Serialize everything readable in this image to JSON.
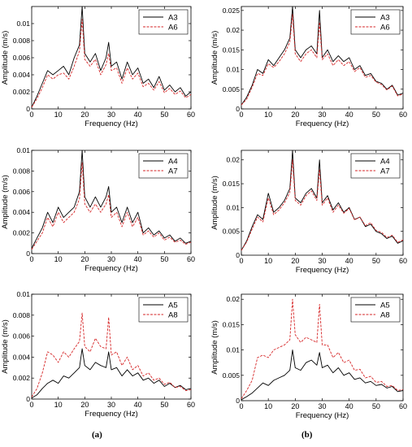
{
  "figure": {
    "labels": [
      "(a)",
      "(b)"
    ]
  },
  "chart_data": [
    {
      "id": "a1",
      "type": "line",
      "xlabel": "Frequency (Hz)",
      "ylabel": "Amplitude (m/s)",
      "xlim": [
        0,
        60
      ],
      "ylim": [
        0,
        0.012
      ],
      "xticks": [
        0,
        10,
        20,
        30,
        40,
        50,
        60
      ],
      "yticks": [
        "0",
        "0.002",
        "0.004",
        "0.006",
        "0.008",
        "0.01"
      ],
      "ytick_values": [
        0,
        0.002,
        0.004,
        0.006,
        0.008,
        0.01
      ],
      "legend_position": "top-right",
      "series": [
        {
          "name": "A3",
          "color": "#000000",
          "dash": "solid",
          "x": [
            0,
            2,
            4,
            6,
            8,
            10,
            12,
            14,
            16,
            18,
            19,
            20,
            22,
            24,
            26,
            28,
            29,
            30,
            32,
            34,
            36,
            38,
            40,
            42,
            44,
            46,
            48,
            50,
            52,
            54,
            56,
            58,
            60
          ],
          "y": [
            0.0002,
            0.0015,
            0.003,
            0.0045,
            0.004,
            0.0045,
            0.005,
            0.004,
            0.006,
            0.0075,
            0.012,
            0.0065,
            0.0055,
            0.0065,
            0.0045,
            0.006,
            0.0078,
            0.005,
            0.0055,
            0.0035,
            0.0055,
            0.004,
            0.0048,
            0.003,
            0.0035,
            0.0025,
            0.0038,
            0.0022,
            0.0028,
            0.002,
            0.0025,
            0.0015,
            0.002
          ]
        },
        {
          "name": "A6",
          "color": "#d62728",
          "dash": "dashed",
          "x": [
            0,
            2,
            4,
            6,
            8,
            10,
            12,
            14,
            16,
            18,
            19,
            20,
            22,
            24,
            26,
            28,
            29,
            30,
            32,
            34,
            36,
            38,
            40,
            42,
            44,
            46,
            48,
            50,
            52,
            54,
            56,
            58,
            60
          ],
          "y": [
            0.0002,
            0.0012,
            0.0025,
            0.004,
            0.0035,
            0.004,
            0.0042,
            0.0035,
            0.005,
            0.0068,
            0.0105,
            0.0058,
            0.005,
            0.0058,
            0.004,
            0.0052,
            0.0065,
            0.0045,
            0.0048,
            0.003,
            0.0048,
            0.0035,
            0.0042,
            0.0026,
            0.003,
            0.0022,
            0.0032,
            0.0019,
            0.0024,
            0.0017,
            0.0021,
            0.0013,
            0.0017
          ]
        }
      ]
    },
    {
      "id": "b1",
      "type": "line",
      "xlabel": "Frequency (Hz)",
      "ylabel": "Amplitude (m/s)",
      "xlim": [
        0,
        60
      ],
      "ylim": [
        0,
        0.026
      ],
      "xticks": [
        0,
        10,
        20,
        30,
        40,
        50,
        60
      ],
      "yticks": [
        "0",
        "0.005",
        "0.01",
        "0.015",
        "0.02",
        "0.025"
      ],
      "ytick_values": [
        0,
        0.005,
        0.01,
        0.015,
        0.02,
        0.025
      ],
      "legend_position": "top-right",
      "series": [
        {
          "name": "A3",
          "color": "#000000",
          "dash": "solid",
          "x": [
            0,
            2,
            4,
            6,
            8,
            10,
            12,
            14,
            16,
            18,
            19,
            20,
            22,
            24,
            26,
            28,
            29,
            30,
            32,
            34,
            36,
            38,
            40,
            42,
            44,
            46,
            48,
            50,
            52,
            54,
            56,
            58,
            60
          ],
          "y": [
            0.001,
            0.003,
            0.006,
            0.01,
            0.009,
            0.0125,
            0.011,
            0.013,
            0.015,
            0.018,
            0.026,
            0.015,
            0.013,
            0.015,
            0.016,
            0.014,
            0.025,
            0.013,
            0.015,
            0.012,
            0.0135,
            0.012,
            0.013,
            0.01,
            0.011,
            0.0085,
            0.009,
            0.007,
            0.0065,
            0.005,
            0.006,
            0.0035,
            0.004
          ]
        },
        {
          "name": "A6",
          "color": "#d62728",
          "dash": "dashed",
          "x": [
            0,
            2,
            4,
            6,
            8,
            10,
            12,
            14,
            16,
            18,
            19,
            20,
            22,
            24,
            26,
            28,
            29,
            30,
            32,
            34,
            36,
            38,
            40,
            42,
            44,
            46,
            48,
            50,
            52,
            54,
            56,
            58,
            60
          ],
          "y": [
            0.001,
            0.0025,
            0.0055,
            0.009,
            0.0085,
            0.0115,
            0.0105,
            0.012,
            0.014,
            0.017,
            0.024,
            0.014,
            0.012,
            0.014,
            0.015,
            0.013,
            0.022,
            0.0125,
            0.014,
            0.011,
            0.0125,
            0.011,
            0.012,
            0.0095,
            0.0105,
            0.008,
            0.0085,
            0.0068,
            0.0062,
            0.0048,
            0.0058,
            0.0033,
            0.0038
          ]
        }
      ]
    },
    {
      "id": "a2",
      "type": "line",
      "xlabel": "Frequency (Hz)",
      "ylabel": "Amplitude (m/s)",
      "xlim": [
        0,
        60
      ],
      "ylim": [
        0,
        0.01
      ],
      "xticks": [
        0,
        10,
        20,
        30,
        40,
        50,
        60
      ],
      "yticks": [
        "0",
        "0.002",
        "0.004",
        "0.006",
        "0.008",
        "0.01"
      ],
      "ytick_values": [
        0,
        0.002,
        0.004,
        0.006,
        0.008,
        0.01
      ],
      "legend_position": "top-right",
      "series": [
        {
          "name": "A4",
          "color": "#000000",
          "dash": "solid",
          "x": [
            0,
            2,
            4,
            6,
            8,
            10,
            12,
            14,
            16,
            18,
            19,
            20,
            22,
            24,
            26,
            28,
            29,
            30,
            32,
            34,
            36,
            38,
            40,
            42,
            44,
            46,
            48,
            50,
            52,
            54,
            56,
            58,
            60
          ],
          "y": [
            0.0005,
            0.0015,
            0.0025,
            0.004,
            0.003,
            0.0045,
            0.0035,
            0.004,
            0.0045,
            0.006,
            0.01,
            0.0055,
            0.0045,
            0.0055,
            0.0045,
            0.0055,
            0.0065,
            0.004,
            0.0045,
            0.003,
            0.0045,
            0.003,
            0.004,
            0.002,
            0.0025,
            0.0018,
            0.0022,
            0.0015,
            0.0018,
            0.0012,
            0.0015,
            0.001,
            0.0012
          ]
        },
        {
          "name": "A7",
          "color": "#d62728",
          "dash": "dashed",
          "x": [
            0,
            2,
            4,
            6,
            8,
            10,
            12,
            14,
            16,
            18,
            19,
            20,
            22,
            24,
            26,
            28,
            29,
            30,
            32,
            34,
            36,
            38,
            40,
            42,
            44,
            46,
            48,
            50,
            52,
            54,
            56,
            58,
            60
          ],
          "y": [
            0.0004,
            0.0012,
            0.002,
            0.0035,
            0.0026,
            0.004,
            0.003,
            0.0035,
            0.004,
            0.0053,
            0.0088,
            0.0048,
            0.004,
            0.0048,
            0.004,
            0.0048,
            0.0057,
            0.0035,
            0.004,
            0.0026,
            0.004,
            0.0026,
            0.0035,
            0.0018,
            0.0022,
            0.0016,
            0.002,
            0.0013,
            0.0016,
            0.0011,
            0.0013,
            0.0009,
            0.0011
          ]
        }
      ]
    },
    {
      "id": "b2",
      "type": "line",
      "xlabel": "Frequency (Hz)",
      "ylabel": "Amplitude (m/s)",
      "xlim": [
        0,
        60
      ],
      "ylim": [
        0,
        0.022
      ],
      "xticks": [
        0,
        10,
        20,
        30,
        40,
        50,
        60
      ],
      "yticks": [
        "0",
        "0.005",
        "0.01",
        "0.015",
        "0.02"
      ],
      "ytick_values": [
        0,
        0.005,
        0.01,
        0.015,
        0.02
      ],
      "legend_position": "top-right",
      "series": [
        {
          "name": "A4",
          "color": "#000000",
          "dash": "solid",
          "x": [
            0,
            2,
            4,
            6,
            8,
            10,
            12,
            14,
            16,
            18,
            19,
            20,
            22,
            24,
            26,
            28,
            29,
            30,
            32,
            34,
            36,
            38,
            40,
            42,
            44,
            46,
            48,
            50,
            52,
            54,
            56,
            58,
            60
          ],
          "y": [
            0.001,
            0.003,
            0.006,
            0.0085,
            0.0075,
            0.013,
            0.009,
            0.01,
            0.0115,
            0.014,
            0.022,
            0.012,
            0.011,
            0.013,
            0.014,
            0.012,
            0.02,
            0.011,
            0.0125,
            0.0095,
            0.011,
            0.009,
            0.01,
            0.0075,
            0.008,
            0.006,
            0.0065,
            0.005,
            0.0045,
            0.0035,
            0.004,
            0.0025,
            0.003
          ]
        },
        {
          "name": "A7",
          "color": "#d62728",
          "dash": "dashed",
          "x": [
            0,
            2,
            4,
            6,
            8,
            10,
            12,
            14,
            16,
            18,
            19,
            20,
            22,
            24,
            26,
            28,
            29,
            30,
            32,
            34,
            36,
            38,
            40,
            42,
            44,
            46,
            48,
            50,
            52,
            54,
            56,
            58,
            60
          ],
          "y": [
            0.001,
            0.0028,
            0.0055,
            0.008,
            0.007,
            0.012,
            0.0085,
            0.0095,
            0.011,
            0.0132,
            0.02,
            0.0115,
            0.0105,
            0.0125,
            0.0135,
            0.0115,
            0.018,
            0.0105,
            0.012,
            0.009,
            0.0105,
            0.0088,
            0.0098,
            0.0074,
            0.008,
            0.0062,
            0.0068,
            0.0052,
            0.0048,
            0.0037,
            0.0042,
            0.0027,
            0.0032
          ]
        }
      ]
    },
    {
      "id": "a3",
      "type": "line",
      "xlabel": "Frequency (Hz)",
      "ylabel": "Amplitude (m/s)",
      "xlim": [
        0,
        60
      ],
      "ylim": [
        0,
        0.01
      ],
      "xticks": [
        0,
        10,
        20,
        30,
        40,
        50,
        60
      ],
      "yticks": [
        "0",
        "0.002",
        "0.004",
        "0.006",
        "0.008",
        "0.01"
      ],
      "ytick_values": [
        0,
        0.002,
        0.004,
        0.006,
        0.008,
        0.01
      ],
      "legend_position": "top-right",
      "series": [
        {
          "name": "A5",
          "color": "#000000",
          "dash": "solid",
          "x": [
            0,
            2,
            4,
            6,
            8,
            10,
            12,
            14,
            16,
            18,
            19,
            20,
            22,
            24,
            26,
            28,
            29,
            30,
            32,
            34,
            36,
            38,
            40,
            42,
            44,
            46,
            48,
            50,
            52,
            54,
            56,
            58,
            60
          ],
          "y": [
            0.0001,
            0.0004,
            0.001,
            0.0015,
            0.0018,
            0.0015,
            0.0022,
            0.002,
            0.0025,
            0.003,
            0.0048,
            0.0032,
            0.0028,
            0.0035,
            0.0032,
            0.003,
            0.0045,
            0.0028,
            0.003,
            0.0022,
            0.0028,
            0.0022,
            0.0025,
            0.0018,
            0.002,
            0.0015,
            0.0018,
            0.0012,
            0.0015,
            0.0011,
            0.0013,
            0.0009,
            0.001
          ]
        },
        {
          "name": "A8",
          "color": "#d62728",
          "dash": "dashed",
          "x": [
            0,
            2,
            4,
            6,
            8,
            10,
            12,
            14,
            16,
            18,
            19,
            20,
            22,
            24,
            26,
            28,
            29,
            30,
            32,
            34,
            36,
            38,
            40,
            42,
            44,
            46,
            48,
            50,
            52,
            54,
            56,
            58,
            60
          ],
          "y": [
            0.0002,
            0.001,
            0.0025,
            0.0045,
            0.0042,
            0.0035,
            0.0045,
            0.004,
            0.0048,
            0.0055,
            0.0082,
            0.005,
            0.0045,
            0.0058,
            0.005,
            0.0048,
            0.0078,
            0.0042,
            0.0045,
            0.0032,
            0.004,
            0.0028,
            0.0032,
            0.0022,
            0.0025,
            0.0018,
            0.002,
            0.0014,
            0.0016,
            0.0011,
            0.0012,
            0.0008,
            0.0009
          ]
        }
      ]
    },
    {
      "id": "b3",
      "type": "line",
      "xlabel": "Frequency (Hz)",
      "ylabel": "Amplitude (m/s)",
      "xlim": [
        0,
        60
      ],
      "ylim": [
        0,
        0.021
      ],
      "xticks": [
        0,
        10,
        20,
        30,
        40,
        50,
        60
      ],
      "yticks": [
        "0",
        "0.005",
        "0.01",
        "0.015",
        "0.02"
      ],
      "ytick_values": [
        0,
        0.005,
        0.01,
        0.015,
        0.02
      ],
      "legend_position": "top-right",
      "series": [
        {
          "name": "A5",
          "color": "#000000",
          "dash": "solid",
          "x": [
            0,
            2,
            4,
            6,
            8,
            10,
            12,
            14,
            16,
            18,
            19,
            20,
            22,
            24,
            26,
            28,
            29,
            30,
            32,
            34,
            36,
            38,
            40,
            42,
            44,
            46,
            48,
            50,
            52,
            54,
            56,
            58,
            60
          ],
          "y": [
            0.0002,
            0.0008,
            0.0015,
            0.0025,
            0.0035,
            0.003,
            0.004,
            0.0045,
            0.005,
            0.006,
            0.01,
            0.0065,
            0.006,
            0.0075,
            0.008,
            0.007,
            0.0095,
            0.0065,
            0.007,
            0.0055,
            0.0065,
            0.005,
            0.0055,
            0.0042,
            0.0045,
            0.0035,
            0.0038,
            0.003,
            0.0032,
            0.0025,
            0.0028,
            0.0018,
            0.002
          ]
        },
        {
          "name": "A8",
          "color": "#d62728",
          "dash": "dashed",
          "x": [
            0,
            2,
            4,
            6,
            8,
            10,
            12,
            14,
            16,
            18,
            19,
            20,
            22,
            24,
            26,
            28,
            29,
            30,
            32,
            34,
            36,
            38,
            40,
            42,
            44,
            46,
            48,
            50,
            52,
            54,
            56,
            58,
            60
          ],
          "y": [
            0.0004,
            0.002,
            0.004,
            0.0085,
            0.009,
            0.0085,
            0.01,
            0.0105,
            0.011,
            0.012,
            0.02,
            0.013,
            0.0115,
            0.0125,
            0.012,
            0.0115,
            0.019,
            0.011,
            0.011,
            0.0085,
            0.0095,
            0.0075,
            0.008,
            0.006,
            0.0062,
            0.0045,
            0.0048,
            0.0036,
            0.0038,
            0.0028,
            0.003,
            0.002,
            0.0022
          ]
        }
      ]
    }
  ]
}
